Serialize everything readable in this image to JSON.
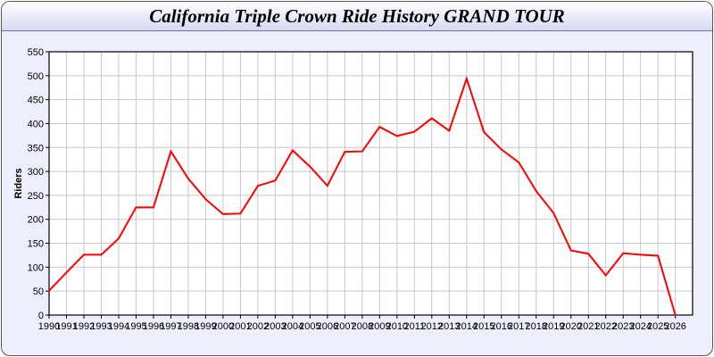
{
  "chart_data": {
    "type": "line",
    "title": "California Triple Crown Ride History GRAND TOUR",
    "xlabel": "",
    "ylabel": "Riders",
    "ylim": [
      0,
      550
    ],
    "yticks": [
      0,
      50,
      100,
      150,
      200,
      250,
      300,
      350,
      400,
      450,
      500,
      550
    ],
    "grid": true,
    "line_color": "#ff0000",
    "categories": [
      "1990",
      "1991",
      "1992",
      "1993",
      "1994",
      "1995",
      "1996",
      "1997",
      "1998",
      "1999",
      "2000",
      "2001",
      "2002",
      "2003",
      "2004",
      "2005",
      "2006",
      "2007",
      "2008",
      "2009",
      "2010",
      "2011",
      "2012",
      "2013",
      "2014",
      "2015",
      "2016",
      "2017",
      "2018",
      "2019",
      "2020",
      "2021",
      "2022",
      "2023",
      "2024",
      "2025",
      "2026"
    ],
    "values": [
      51,
      89,
      126,
      126,
      160,
      225,
      225,
      342,
      285,
      242,
      211,
      212,
      270,
      281,
      344,
      310,
      270,
      341,
      342,
      393,
      374,
      383,
      411,
      385,
      494,
      382,
      346,
      319,
      259,
      213,
      135,
      128,
      83,
      129,
      126,
      124,
      0
    ]
  }
}
